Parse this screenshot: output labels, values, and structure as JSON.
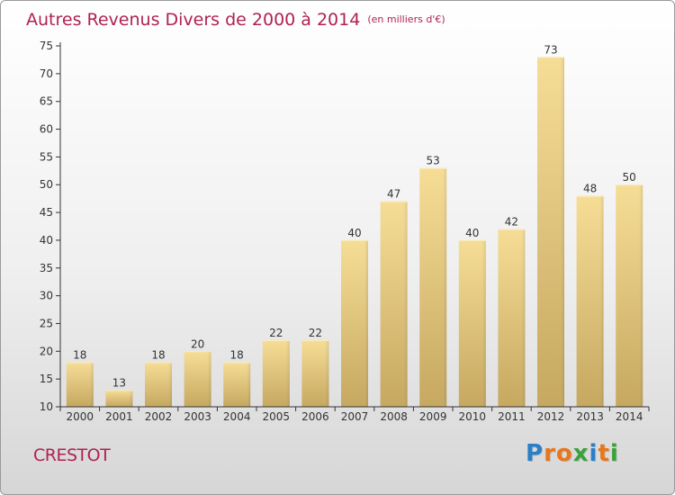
{
  "title": "Autres Revenus Divers de 2000 à 2014",
  "title_unit": "(en milliers d'€)",
  "commune": "CRESTOT",
  "logo": {
    "text": "Proxiti",
    "colors": [
      "#2a7fc8",
      "#e8761b",
      "#e8761b",
      "#3aa23a",
      "#2a7fc8",
      "#e8761b",
      "#3aa23a"
    ]
  },
  "colors": {
    "title": "#b0224f",
    "bar_top": "#f6dd96",
    "bar_bottom": "#c6a860",
    "axis": "#333333"
  },
  "chart_data": {
    "type": "bar",
    "title": "Autres Revenus Divers de 2000 à 2014",
    "xlabel": "",
    "ylabel": "",
    "categories": [
      "2000",
      "2001",
      "2002",
      "2003",
      "2004",
      "2005",
      "2006",
      "2007",
      "2008",
      "2009",
      "2010",
      "2011",
      "2012",
      "2013",
      "2014"
    ],
    "values": [
      18,
      13,
      18,
      20,
      18,
      22,
      22,
      40,
      47,
      53,
      40,
      42,
      73,
      48,
      50
    ],
    "ylim": [
      10,
      75
    ],
    "yticks": [
      10,
      15,
      20,
      25,
      30,
      35,
      40,
      45,
      50,
      55,
      60,
      65,
      70,
      75
    ],
    "grid": false,
    "data_labels": true
  }
}
